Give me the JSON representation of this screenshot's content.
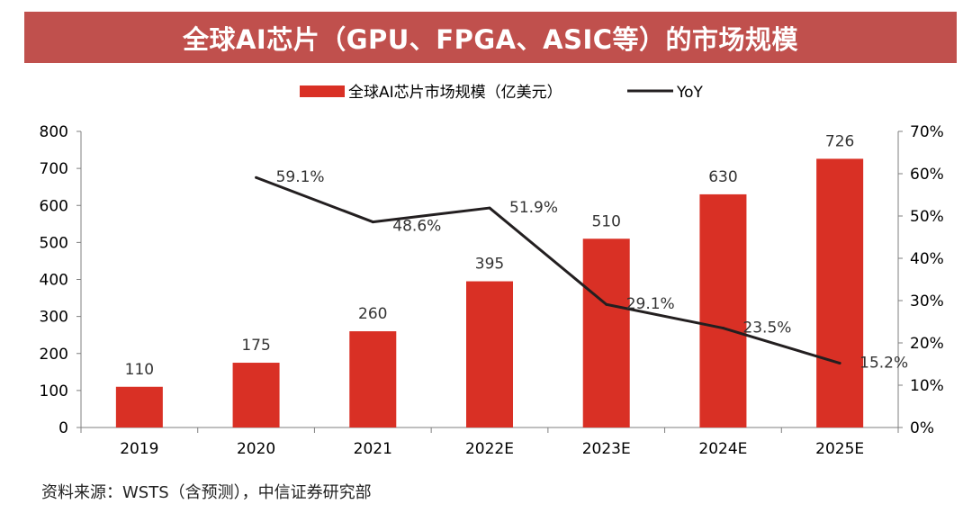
{
  "chart_data": {
    "type": "bar",
    "title": "全球AI芯片（GPU、FPGA、ASIC等）的市场规模",
    "categories": [
      "2019",
      "2020",
      "2021",
      "2022E",
      "2023E",
      "2024E",
      "2025E"
    ],
    "series": [
      {
        "name": "全球AI芯片市场规模（亿美元）",
        "type": "bar",
        "axis": "left",
        "values": [
          110,
          175,
          260,
          395,
          510,
          630,
          726
        ],
        "labels": [
          "110",
          "175",
          "260",
          "395",
          "510",
          "630",
          "726"
        ]
      },
      {
        "name": "YoY",
        "type": "line",
        "axis": "right",
        "values": [
          null,
          59.1,
          48.6,
          51.9,
          29.1,
          23.5,
          15.2
        ],
        "labels": [
          "",
          "59.1%",
          "48.6%",
          "51.9%",
          "29.1%",
          "23.5%",
          "15.2%"
        ]
      }
    ],
    "ylim": [
      0,
      800
    ],
    "yticks": [
      "0",
      "100",
      "200",
      "300",
      "400",
      "500",
      "600",
      "700",
      "800"
    ],
    "y2lim": [
      0,
      70
    ],
    "y2ticks": [
      "0%",
      "10%",
      "20%",
      "30%",
      "40%",
      "50%",
      "60%",
      "70%"
    ],
    "legend_position": "top-center",
    "colors": {
      "bar": "#d93025",
      "line": "#231f20",
      "title_bg": "#c0504d"
    }
  },
  "source": "资料来源：WSTS（含预测），中信证券研究部"
}
